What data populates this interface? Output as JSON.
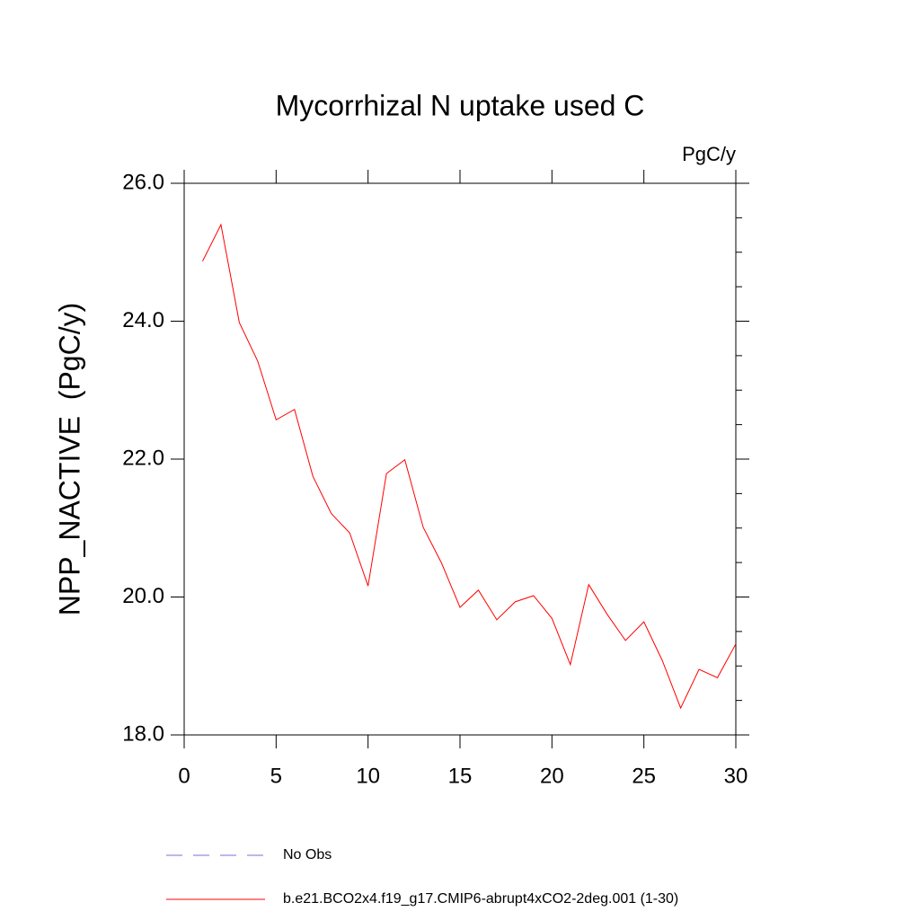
{
  "chart_data": {
    "type": "line",
    "title": "Mycorrhizal N uptake used C",
    "units_label": "PgC/y",
    "y_label": "NPP_NACTIVE  (PgC/y)",
    "x": [
      1,
      2,
      3,
      4,
      5,
      6,
      7,
      8,
      9,
      10,
      11,
      12,
      13,
      14,
      15,
      16,
      17,
      18,
      19,
      20,
      21,
      22,
      23,
      24,
      25,
      26,
      27,
      28,
      29,
      30
    ],
    "series": [
      {
        "name": "b.e21.BCO2x4.f19_g17.CMIP6-abrupt4xCO2-2deg.001 (1-30)",
        "color": "#ff0000",
        "values": [
          24.87,
          25.4,
          23.98,
          23.42,
          22.57,
          22.72,
          21.75,
          21.21,
          20.93,
          20.16,
          21.79,
          21.99,
          21.01,
          20.49,
          19.85,
          20.1,
          19.67,
          19.93,
          20.02,
          19.69,
          19.02,
          20.18,
          19.75,
          19.37,
          19.64,
          19.08,
          18.39,
          18.95,
          18.83,
          19.32
        ]
      }
    ],
    "legend_extra": [
      {
        "name": "No Obs",
        "color": "#7a6fd0",
        "dash": true
      }
    ],
    "xlim": [
      0,
      30
    ],
    "xticks": [
      0,
      5,
      10,
      15,
      20,
      25,
      30
    ],
    "ylim": [
      18,
      26
    ],
    "yticks": [
      {
        "value": 18,
        "label": "18.0"
      },
      {
        "value": 20,
        "label": "20.0"
      },
      {
        "value": 22,
        "label": "22.0"
      },
      {
        "value": 24,
        "label": "24.0"
      },
      {
        "value": 26,
        "label": "26.0"
      }
    ],
    "y_minor_ticks": [
      18.5,
      19,
      19.5,
      20.5,
      21,
      21.5,
      22.5,
      23,
      23.5,
      24.5,
      25,
      25.5
    ]
  }
}
